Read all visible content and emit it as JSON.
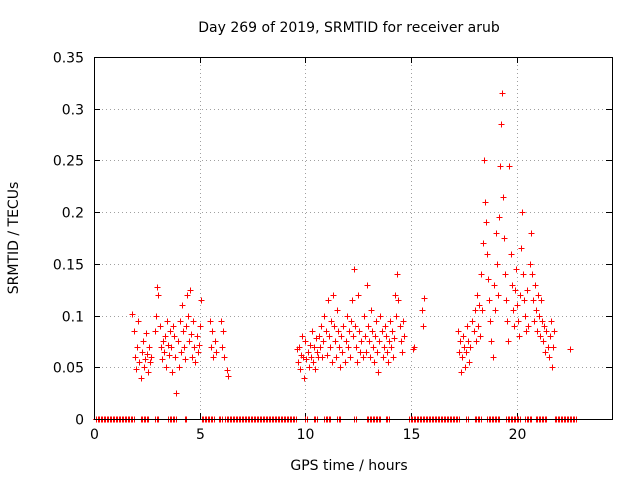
{
  "chart_data": {
    "type": "scatter",
    "title": "Day 269 of 2019, SRMTID for receiver arub",
    "xlabel": "GPS time / hours",
    "ylabel": "SRMTID / TECUs",
    "xlim": [
      0,
      24.5
    ],
    "ylim": [
      0,
      0.35
    ],
    "xticks": [
      "0",
      "5",
      "10",
      "15",
      "20"
    ],
    "xtick_values": [
      0,
      5,
      10,
      15,
      20
    ],
    "yticks": [
      "0",
      "0.05",
      "0.1",
      "0.15",
      "0.2",
      "0.25",
      "0.3",
      "0.35"
    ],
    "ytick_values": [
      0,
      0.05,
      0.1,
      0.15,
      0.2,
      0.25,
      0.3,
      0.35
    ],
    "grid": true,
    "marker": "+",
    "color": "#ff0000",
    "series": [
      {
        "name": "SRMTID",
        "points": [
          [
            1.8,
            0.102
          ],
          [
            1.9,
            0.085
          ],
          [
            1.95,
            0.06
          ],
          [
            2.0,
            0.048
          ],
          [
            2.05,
            0.07
          ],
          [
            2.1,
            0.095
          ],
          [
            2.15,
            0.055
          ],
          [
            2.2,
            0.04
          ],
          [
            2.25,
            0.065
          ],
          [
            2.3,
            0.075
          ],
          [
            2.35,
            0.05
          ],
          [
            2.4,
            0.058
          ],
          [
            2.45,
            0.083
          ],
          [
            2.5,
            0.063
          ],
          [
            2.55,
            0.045
          ],
          [
            2.6,
            0.07
          ],
          [
            2.65,
            0.055
          ],
          [
            2.7,
            0.06
          ],
          [
            2.9,
            0.085
          ],
          [
            2.95,
            0.1
          ],
          [
            3.0,
            0.128
          ],
          [
            3.05,
            0.12
          ],
          [
            3.1,
            0.09
          ],
          [
            3.15,
            0.07
          ],
          [
            3.2,
            0.058
          ],
          [
            3.25,
            0.075
          ],
          [
            3.3,
            0.065
          ],
          [
            3.35,
            0.08
          ],
          [
            3.4,
            0.05
          ],
          [
            3.45,
            0.095
          ],
          [
            3.5,
            0.072
          ],
          [
            3.55,
            0.062
          ],
          [
            3.6,
            0.085
          ],
          [
            3.65,
            0.07
          ],
          [
            3.7,
            0.045
          ],
          [
            3.75,
            0.09
          ],
          [
            3.8,
            0.08
          ],
          [
            3.85,
            0.06
          ],
          [
            3.9,
            0.025
          ],
          [
            3.95,
            0.075
          ],
          [
            4.0,
            0.05
          ],
          [
            4.05,
            0.095
          ],
          [
            4.1,
            0.065
          ],
          [
            4.15,
            0.11
          ],
          [
            4.2,
            0.085
          ],
          [
            4.25,
            0.07
          ],
          [
            4.3,
            0.058
          ],
          [
            4.35,
            0.09
          ],
          [
            4.4,
            0.12
          ],
          [
            4.45,
            0.1
          ],
          [
            4.5,
            0.075
          ],
          [
            4.55,
            0.125
          ],
          [
            4.6,
            0.082
          ],
          [
            4.65,
            0.06
          ],
          [
            4.7,
            0.095
          ],
          [
            4.75,
            0.07
          ],
          [
            4.8,
            0.055
          ],
          [
            4.85,
            0.08
          ],
          [
            4.9,
            0.065
          ],
          [
            4.95,
            0.072
          ],
          [
            5.0,
            0.09
          ],
          [
            5.05,
            0.115
          ],
          [
            5.5,
            0.095
          ],
          [
            5.55,
            0.07
          ],
          [
            5.6,
            0.085
          ],
          [
            5.65,
            0.06
          ],
          [
            5.7,
            0.075
          ],
          [
            5.75,
            0.065
          ],
          [
            6.0,
            0.095
          ],
          [
            6.05,
            0.07
          ],
          [
            6.1,
            0.085
          ],
          [
            6.15,
            0.06
          ],
          [
            6.3,
            0.047
          ],
          [
            6.35,
            0.042
          ],
          [
            9.6,
            0.068
          ],
          [
            9.65,
            0.055
          ],
          [
            9.7,
            0.07
          ],
          [
            9.75,
            0.048
          ],
          [
            9.8,
            0.062
          ],
          [
            9.85,
            0.08
          ],
          [
            9.9,
            0.06
          ],
          [
            9.95,
            0.04
          ],
          [
            10.0,
            0.075
          ],
          [
            10.05,
            0.058
          ],
          [
            10.1,
            0.065
          ],
          [
            10.15,
            0.05
          ],
          [
            10.2,
            0.072
          ],
          [
            10.25,
            0.06
          ],
          [
            10.3,
            0.085
          ],
          [
            10.35,
            0.055
          ],
          [
            10.4,
            0.07
          ],
          [
            10.45,
            0.048
          ],
          [
            10.5,
            0.078
          ],
          [
            10.55,
            0.065
          ],
          [
            10.6,
            0.06
          ],
          [
            10.65,
            0.08
          ],
          [
            10.7,
            0.07
          ],
          [
            10.75,
            0.09
          ],
          [
            10.8,
            0.06
          ],
          [
            10.85,
            0.075
          ],
          [
            10.9,
            0.1
          ],
          [
            10.95,
            0.085
          ],
          [
            11.0,
            0.062
          ],
          [
            11.05,
            0.115
          ],
          [
            11.1,
            0.08
          ],
          [
            11.15,
            0.07
          ],
          [
            11.2,
            0.095
          ],
          [
            11.25,
            0.055
          ],
          [
            11.3,
            0.12
          ],
          [
            11.35,
            0.09
          ],
          [
            11.4,
            0.075
          ],
          [
            11.45,
            0.06
          ],
          [
            11.5,
            0.105
          ],
          [
            11.55,
            0.085
          ],
          [
            11.6,
            0.07
          ],
          [
            11.65,
            0.05
          ],
          [
            11.7,
            0.08
          ],
          [
            11.75,
            0.065
          ],
          [
            11.8,
            0.09
          ],
          [
            11.85,
            0.055
          ],
          [
            11.9,
            0.075
          ],
          [
            11.95,
            0.1
          ],
          [
            12.0,
            0.07
          ],
          [
            12.05,
            0.085
          ],
          [
            12.1,
            0.06
          ],
          [
            12.15,
            0.095
          ],
          [
            12.2,
            0.115
          ],
          [
            12.25,
            0.08
          ],
          [
            12.3,
            0.145
          ],
          [
            12.35,
            0.09
          ],
          [
            12.4,
            0.07
          ],
          [
            12.45,
            0.055
          ],
          [
            12.5,
            0.12
          ],
          [
            12.55,
            0.085
          ],
          [
            12.6,
            0.065
          ],
          [
            12.65,
            0.075
          ],
          [
            12.7,
            0.06
          ],
          [
            12.75,
            0.1
          ],
          [
            12.8,
            0.08
          ],
          [
            12.85,
            0.065
          ],
          [
            12.9,
            0.13
          ],
          [
            12.95,
            0.09
          ],
          [
            13.0,
            0.075
          ],
          [
            13.05,
            0.06
          ],
          [
            13.1,
            0.105
          ],
          [
            13.15,
            0.085
          ],
          [
            13.2,
            0.07
          ],
          [
            13.25,
            0.055
          ],
          [
            13.3,
            0.08
          ],
          [
            13.35,
            0.095
          ],
          [
            13.4,
            0.065
          ],
          [
            13.45,
            0.045
          ],
          [
            13.5,
            0.075
          ],
          [
            13.55,
            0.1
          ],
          [
            13.6,
            0.085
          ],
          [
            13.65,
            0.06
          ],
          [
            13.7,
            0.07
          ],
          [
            13.75,
            0.09
          ],
          [
            13.8,
            0.08
          ],
          [
            13.85,
            0.065
          ],
          [
            13.9,
            0.055
          ],
          [
            13.95,
            0.075
          ],
          [
            14.0,
            0.095
          ],
          [
            14.05,
            0.07
          ],
          [
            14.1,
            0.085
          ],
          [
            14.15,
            0.06
          ],
          [
            14.2,
            0.078
          ],
          [
            14.25,
            0.12
          ],
          [
            14.3,
            0.1
          ],
          [
            14.35,
            0.14
          ],
          [
            14.4,
            0.115
          ],
          [
            14.45,
            0.09
          ],
          [
            14.5,
            0.075
          ],
          [
            14.55,
            0.065
          ],
          [
            14.6,
            0.095
          ],
          [
            14.65,
            0.08
          ],
          [
            15.1,
            0.068
          ],
          [
            15.15,
            0.07
          ],
          [
            15.5,
            0.105
          ],
          [
            15.55,
            0.09
          ],
          [
            15.6,
            0.117
          ],
          [
            17.2,
            0.085
          ],
          [
            17.25,
            0.065
          ],
          [
            17.3,
            0.075
          ],
          [
            17.35,
            0.045
          ],
          [
            17.4,
            0.06
          ],
          [
            17.45,
            0.08
          ],
          [
            17.5,
            0.07
          ],
          [
            17.55,
            0.05
          ],
          [
            17.6,
            0.065
          ],
          [
            17.65,
            0.09
          ],
          [
            17.7,
            0.075
          ],
          [
            17.75,
            0.055
          ],
          [
            17.8,
            0.07
          ],
          [
            17.9,
            0.095
          ],
          [
            17.95,
            0.085
          ],
          [
            18.0,
            0.105
          ],
          [
            18.05,
            0.075
          ],
          [
            18.1,
            0.12
          ],
          [
            18.15,
            0.09
          ],
          [
            18.2,
            0.11
          ],
          [
            18.25,
            0.08
          ],
          [
            18.3,
            0.14
          ],
          [
            18.35,
            0.105
          ],
          [
            18.4,
            0.17
          ],
          [
            18.45,
            0.25
          ],
          [
            18.5,
            0.21
          ],
          [
            18.55,
            0.19
          ],
          [
            18.6,
            0.16
          ],
          [
            18.65,
            0.135
          ],
          [
            18.7,
            0.115
          ],
          [
            18.75,
            0.095
          ],
          [
            18.8,
            0.075
          ],
          [
            18.85,
            0.06
          ],
          [
            18.9,
            0.13
          ],
          [
            18.95,
            0.105
          ],
          [
            19.0,
            0.18
          ],
          [
            19.05,
            0.15
          ],
          [
            19.1,
            0.12
          ],
          [
            19.15,
            0.195
          ],
          [
            19.2,
            0.245
          ],
          [
            19.25,
            0.285
          ],
          [
            19.3,
            0.315
          ],
          [
            19.35,
            0.215
          ],
          [
            19.4,
            0.175
          ],
          [
            19.45,
            0.14
          ],
          [
            19.5,
            0.115
          ],
          [
            19.55,
            0.095
          ],
          [
            19.6,
            0.075
          ],
          [
            19.65,
            0.245
          ],
          [
            19.7,
            0.16
          ],
          [
            19.75,
            0.13
          ],
          [
            19.8,
            0.105
          ],
          [
            19.85,
            0.09
          ],
          [
            19.9,
            0.125
          ],
          [
            19.95,
            0.145
          ],
          [
            20.0,
            0.11
          ],
          [
            20.05,
            0.095
          ],
          [
            20.1,
            0.08
          ],
          [
            20.15,
            0.12
          ],
          [
            20.2,
            0.165
          ],
          [
            20.25,
            0.2
          ],
          [
            20.3,
            0.14
          ],
          [
            20.35,
            0.115
          ],
          [
            20.4,
            0.1
          ],
          [
            20.45,
            0.085
          ],
          [
            20.5,
            0.125
          ],
          [
            20.55,
            0.09
          ],
          [
            20.6,
            0.15
          ],
          [
            20.65,
            0.18
          ],
          [
            20.7,
            0.14
          ],
          [
            20.75,
            0.115
          ],
          [
            20.8,
            0.095
          ],
          [
            20.85,
            0.13
          ],
          [
            20.9,
            0.105
          ],
          [
            20.95,
            0.085
          ],
          [
            21.0,
            0.12
          ],
          [
            21.05,
            0.1
          ],
          [
            21.1,
            0.08
          ],
          [
            21.15,
            0.115
          ],
          [
            21.2,
            0.095
          ],
          [
            21.25,
            0.075
          ],
          [
            21.3,
            0.09
          ],
          [
            21.35,
            0.065
          ],
          [
            21.4,
            0.085
          ],
          [
            21.45,
            0.07
          ],
          [
            21.5,
            0.06
          ],
          [
            21.55,
            0.08
          ],
          [
            21.6,
            0.095
          ],
          [
            21.65,
            0.05
          ],
          [
            21.7,
            0.07
          ],
          [
            21.75,
            0.085
          ],
          [
            22.5,
            0.068
          ]
        ],
        "zero_segments": [
          [
            0.1,
            1.9
          ],
          [
            2.2,
            2.6
          ],
          [
            2.9,
            3.1
          ],
          [
            3.5,
            3.9
          ],
          [
            4.3,
            4.4
          ],
          [
            5.1,
            5.7
          ],
          [
            5.9,
            6.1
          ],
          [
            6.2,
            9.6
          ],
          [
            10.0,
            10.1
          ],
          [
            10.4,
            10.6
          ],
          [
            10.9,
            11.2
          ],
          [
            11.5,
            11.7
          ],
          [
            12.3,
            12.4
          ],
          [
            12.9,
            13.6
          ],
          [
            13.8,
            14.0
          ],
          [
            14.9,
            17.3
          ],
          [
            17.6,
            17.7
          ],
          [
            18.0,
            18.3
          ],
          [
            18.6,
            19.2
          ],
          [
            19.5,
            20.2
          ],
          [
            20.4,
            20.7
          ],
          [
            20.9,
            21.4
          ],
          [
            21.8,
            22.8
          ]
        ]
      }
    ]
  }
}
